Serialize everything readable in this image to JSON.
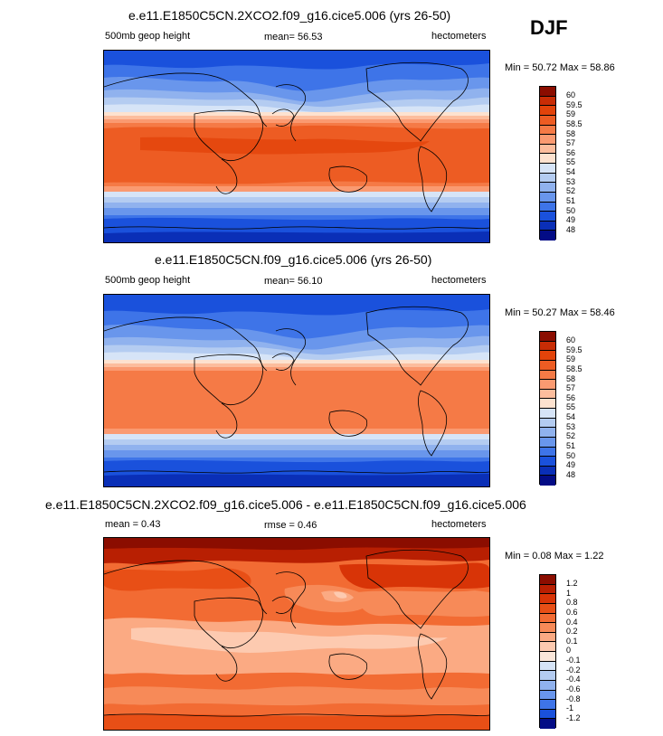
{
  "season": "DJF",
  "panels": [
    {
      "title": "e.e11.E1850C5CN.2XCO2.f09_g16.cice5.006 (yrs 26-50)",
      "left_label": "500mb geop height",
      "center_label": "mean=  56.53",
      "right_label": "hectometers",
      "minmax": "Min = 50.72 Max = 58.86",
      "colorbar_labels": [
        "60",
        "59.5",
        "59",
        "58.5",
        "58",
        "57",
        "56",
        "55",
        "54",
        "53",
        "52",
        "51",
        "50",
        "49",
        "48"
      ],
      "colors": [
        "#8b0d00",
        "#c82c05",
        "#e2430a",
        "#ed5c23",
        "#f57a46",
        "#fa9a71",
        "#fcbd9d",
        "#fde2cf",
        "#d6e4f7",
        "#b4ccf1",
        "#90b2ee",
        "#6996ec",
        "#3e74e8",
        "#1a51dc",
        "#0a2fb7",
        "#030c86"
      ]
    },
    {
      "title": "e.e11.E1850C5CN.f09_g16.cice5.006 (yrs 26-50)",
      "left_label": "500mb geop height",
      "center_label": "mean=  56.10",
      "right_label": "hectometers",
      "minmax": "Min = 50.27 Max = 58.46",
      "colorbar_labels": [
        "60",
        "59.5",
        "59",
        "58.5",
        "58",
        "57",
        "56",
        "55",
        "54",
        "53",
        "52",
        "51",
        "50",
        "49",
        "48"
      ],
      "colors": [
        "#8b0d00",
        "#c82c05",
        "#e2430a",
        "#ed5c23",
        "#f57a46",
        "#fa9a71",
        "#fcbd9d",
        "#fde2cf",
        "#d6e4f7",
        "#b4ccf1",
        "#90b2ee",
        "#6996ec",
        "#3e74e8",
        "#1a51dc",
        "#0a2fb7",
        "#030c86"
      ]
    },
    {
      "title": "e.e11.E1850C5CN.2XCO2.f09_g16.cice5.006 - e.e11.E1850C5CN.f09_g16.cice5.006",
      "left_label": "mean =   0.43",
      "center_label": "rmse =   0.46",
      "right_label": "hectometers",
      "minmax": "Min =  0.08 Max =   1.22",
      "colorbar_labels": [
        "1.2",
        "1",
        "0.8",
        "0.6",
        "0.4",
        "0.2",
        "0.1",
        "0",
        "-0.1",
        "-0.2",
        "-0.4",
        "-0.6",
        "-0.8",
        "-1",
        "-1.2"
      ],
      "colors": [
        "#8b0d00",
        "#b81f02",
        "#d83407",
        "#e84f16",
        "#f26b33",
        "#f78a58",
        "#fbaa83",
        "#fdcab0",
        "#fbe7da",
        "#d6e4f7",
        "#b4ccf1",
        "#90b2ee",
        "#6996ec",
        "#3e74e8",
        "#1a51dc",
        "#030c86"
      ]
    }
  ]
}
